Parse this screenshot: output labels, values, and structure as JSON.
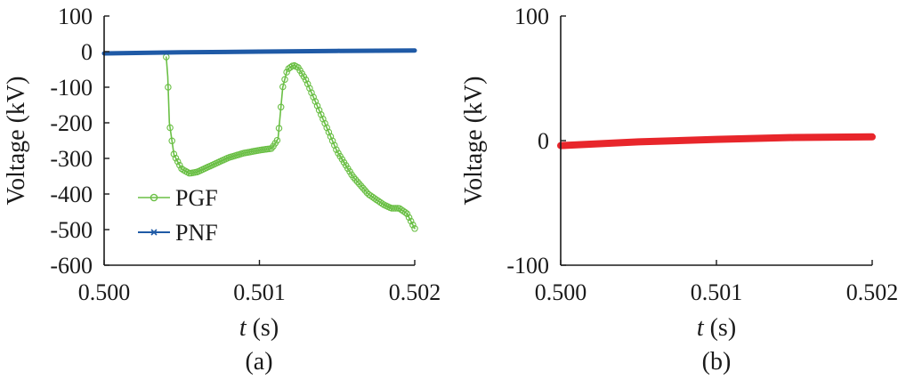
{
  "chart_data": [
    {
      "panel": "(a)",
      "type": "line",
      "xlabel_italic": "t",
      "xlabel_unit": " (s)",
      "ylabel": "Voltage (kV)",
      "xlim": [
        0.5,
        0.502
      ],
      "ylim": [
        -600,
        100
      ],
      "xticks": [
        "0.500",
        "0.501",
        "0.502"
      ],
      "yticks": [
        "100",
        "0",
        "-100",
        "-200",
        "-300",
        "-400",
        "-500",
        "-600"
      ],
      "legend": "lower-left",
      "series": [
        {
          "name": "PGF",
          "color": "#6abf45",
          "marker": "circle",
          "x": [
            0.5004,
            0.50041,
            0.50042,
            0.50045,
            0.5005,
            0.50055,
            0.5006,
            0.5007,
            0.5008,
            0.5009,
            0.501,
            0.50108,
            0.50112,
            0.50115,
            0.50118,
            0.50122,
            0.50125,
            0.5013,
            0.5014,
            0.5015,
            0.5016,
            0.5017,
            0.5018,
            0.50185,
            0.5019,
            0.50195,
            0.502
          ],
          "y": [
            -15,
            -70,
            -200,
            -290,
            -330,
            -342,
            -338,
            -318,
            -298,
            -285,
            -277,
            -272,
            -245,
            -100,
            -50,
            -38,
            -45,
            -80,
            -180,
            -280,
            -350,
            -400,
            -430,
            -440,
            -440,
            -455,
            -497
          ]
        },
        {
          "name": "PNF",
          "color": "#1f5aa6",
          "marker": "x",
          "x": [
            0.5,
            0.5005,
            0.501,
            0.5015,
            0.502
          ],
          "y": [
            -5,
            -2,
            0,
            2,
            3
          ]
        }
      ]
    },
    {
      "panel": "(b)",
      "type": "line",
      "xlabel_italic": "t",
      "xlabel_unit": " (s)",
      "ylabel": "Voltage (kV)",
      "xlim": [
        0.5,
        0.502
      ],
      "ylim": [
        -100,
        100
      ],
      "xticks": [
        "0.500",
        "0.501",
        "0.502"
      ],
      "yticks": [
        "100",
        "0",
        "-100"
      ],
      "series": [
        {
          "color": "#e8262b",
          "x": [
            0.5,
            0.5005,
            0.501,
            0.5015,
            0.502
          ],
          "y": [
            -4,
            -1,
            1,
            2.5,
            3
          ]
        }
      ]
    }
  ]
}
